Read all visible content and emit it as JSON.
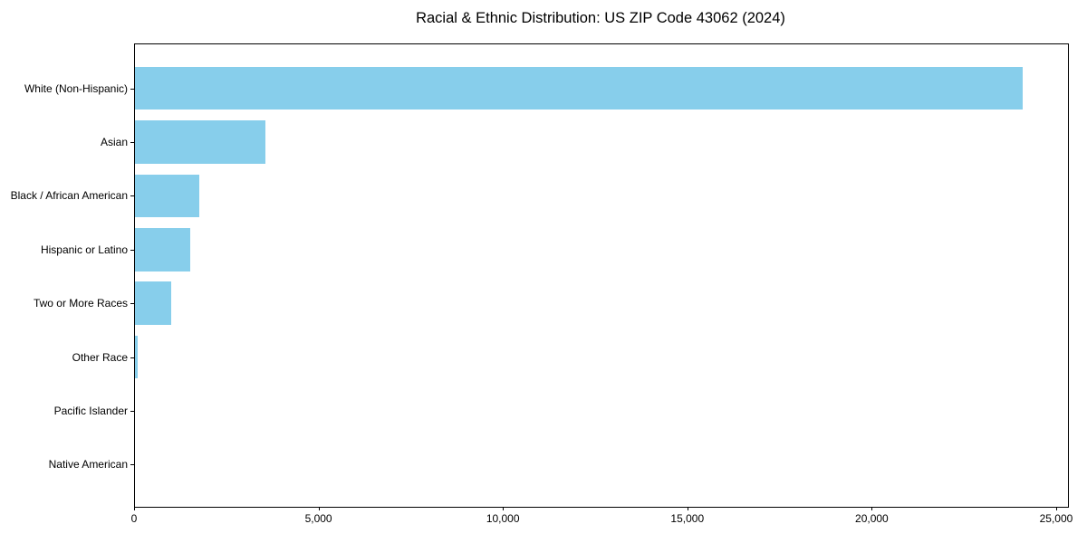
{
  "title": "Racial & Ethnic Distribution: US ZIP Code 43062 (2024)",
  "chart_data": {
    "type": "bar",
    "orientation": "horizontal",
    "title": "Racial & Ethnic Distribution: US ZIP Code 43062 (2024)",
    "xlabel": "",
    "ylabel": "",
    "categories": [
      "White (Non-Hispanic)",
      "Asian",
      "Black / African American",
      "Hispanic or Latino",
      "Two or More Races",
      "Other Race",
      "Pacific Islander",
      "Native American"
    ],
    "values": [
      24090,
      3550,
      1770,
      1530,
      1000,
      100,
      15,
      5
    ],
    "xlim": [
      0,
      25295
    ],
    "x_ticks": [
      0,
      5000,
      10000,
      15000,
      20000,
      25000
    ],
    "x_tick_labels": [
      "0",
      "5,000",
      "10,000",
      "15,000",
      "20,000",
      "25,000"
    ],
    "bar_color": "#87CEEB",
    "axis_color": "#000000",
    "background_color": "#ffffff",
    "grid": false,
    "legend": null
  }
}
